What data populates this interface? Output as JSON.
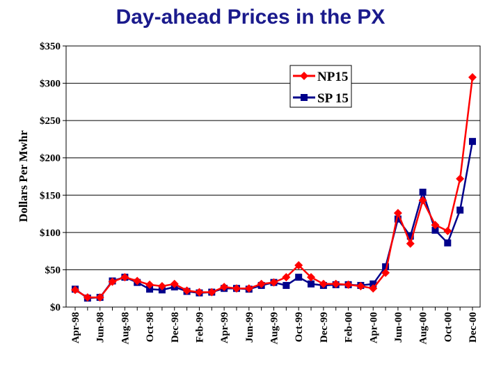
{
  "chart_data": {
    "type": "line",
    "title": "Day-ahead Prices in the PX",
    "xlabel": "",
    "ylabel": "Dollars Per Mwhr",
    "ylim": [
      0,
      350
    ],
    "yticks": [
      0,
      50,
      100,
      150,
      200,
      250,
      300,
      350
    ],
    "ytick_labels": [
      "$0",
      "$50",
      "$100",
      "$150",
      "$200",
      "$250",
      "$300",
      "$350"
    ],
    "x": [
      "Apr-98",
      "May-98",
      "Jun-98",
      "Jul-98",
      "Aug-98",
      "Sep-98",
      "Oct-98",
      "Nov-98",
      "Dec-98",
      "Jan-99",
      "Feb-99",
      "Mar-99",
      "Apr-99",
      "May-99",
      "Jun-99",
      "Jul-99",
      "Aug-99",
      "Sep-99",
      "Oct-99",
      "Nov-99",
      "Dec-99",
      "Jan-00",
      "Feb-00",
      "Mar-00",
      "Apr-00",
      "May-00",
      "Jun-00",
      "Jul-00",
      "Aug-00",
      "Sep-00",
      "Oct-00",
      "Nov-00",
      "Dec-00"
    ],
    "xtick_labels": [
      "Apr-98",
      "Jun-98",
      "Aug-98",
      "Oct-98",
      "Dec-98",
      "Feb-99",
      "Apr-99",
      "Jun-99",
      "Aug-99",
      "Oct-99",
      "Dec-99",
      "Feb-00",
      "Apr-00",
      "Jun-00",
      "Aug-00",
      "Oct-00",
      "Dec-00"
    ],
    "legend_position": "top-right",
    "grid": "horizontal",
    "series": [
      {
        "name": "NP15",
        "color": "#ff0000",
        "marker": "diamond",
        "values": [
          23,
          13,
          13,
          34,
          40,
          35,
          30,
          28,
          31,
          22,
          20,
          20,
          27,
          25,
          25,
          31,
          33,
          40,
          56,
          40,
          31,
          31,
          30,
          28,
          25,
          46,
          126,
          85,
          143,
          110,
          102,
          172,
          308
        ]
      },
      {
        "name": "SP 15",
        "color": "#00008b",
        "marker": "square",
        "values": [
          24,
          12,
          13,
          35,
          40,
          33,
          24,
          23,
          27,
          21,
          19,
          20,
          25,
          25,
          24,
          29,
          33,
          29,
          40,
          31,
          29,
          30,
          30,
          29,
          31,
          54,
          118,
          95,
          154,
          103,
          86,
          130,
          222
        ]
      }
    ]
  }
}
